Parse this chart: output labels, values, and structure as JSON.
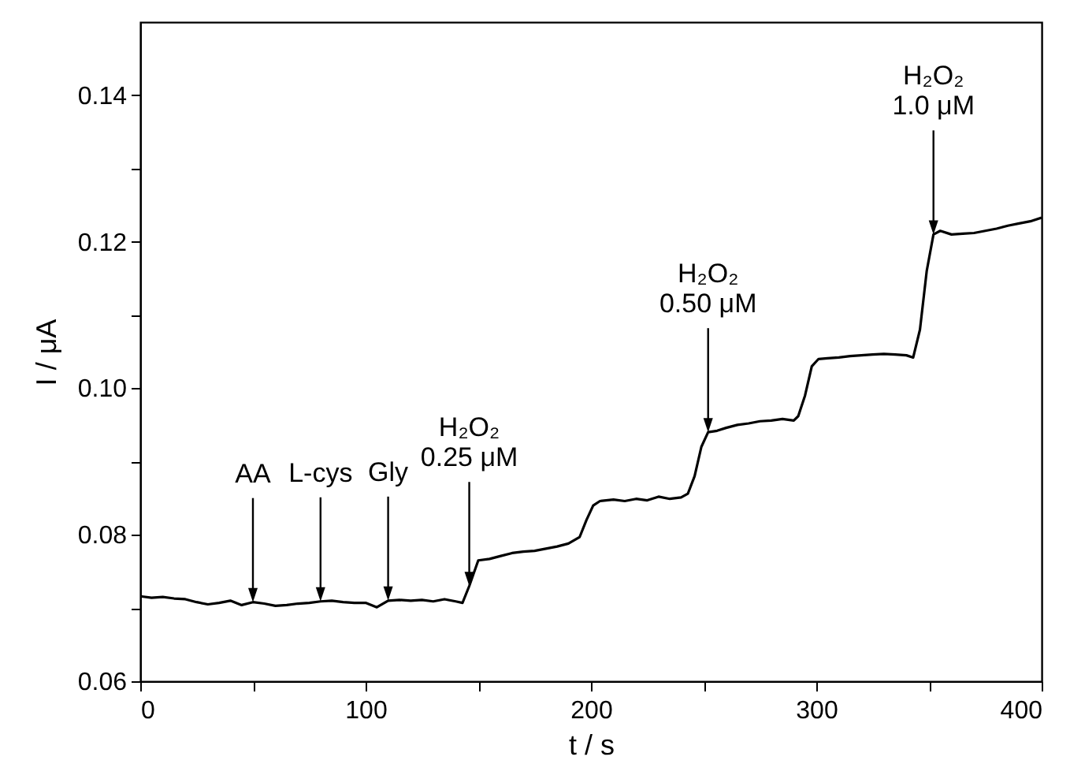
{
  "chart_data": {
    "type": "line",
    "xlabel": "t / s",
    "ylabel": "I / μA",
    "xlim": [
      0,
      400
    ],
    "xticks": [
      0,
      {
        "value": 50,
        "label": null
      },
      100,
      {
        "value": 150,
        "label": null
      },
      200,
      {
        "value": 250,
        "label": null
      },
      300,
      {
        "value": 350,
        "label": null
      },
      400
    ],
    "ylim": [
      0.06,
      0.15
    ],
    "yticks": [
      0.06,
      {
        "value": 0.07,
        "label": null
      },
      0.08,
      {
        "value": 0.09,
        "label": null
      },
      {
        "value": 0.1,
        "label": "0.10"
      },
      {
        "value": 0.11,
        "label": null
      },
      0.12,
      {
        "value": 0.13,
        "label": null
      },
      0.14
    ],
    "grid": false,
    "marker": "none",
    "line_style": "solid",
    "x": [
      0,
      5,
      10,
      15,
      20,
      25,
      30,
      35,
      40,
      45,
      50,
      55,
      60,
      65,
      70,
      75,
      80,
      85,
      90,
      95,
      100,
      105,
      110,
      115,
      120,
      125,
      130,
      135,
      140,
      143,
      146,
      150,
      155,
      160,
      165,
      170,
      175,
      180,
      185,
      190,
      195,
      198,
      201,
      204,
      210,
      215,
      220,
      225,
      230,
      235,
      240,
      243,
      246,
      249,
      252,
      256,
      260,
      265,
      270,
      275,
      280,
      285,
      290,
      292,
      295,
      298,
      301,
      305,
      310,
      315,
      320,
      325,
      330,
      335,
      340,
      343,
      346,
      349,
      352,
      355,
      360,
      365,
      370,
      375,
      380,
      385,
      390,
      395,
      400
    ],
    "series": [
      {
        "color": "#000000",
        "values": [
          0.0716,
          0.0714,
          0.0715,
          0.0713,
          0.0712,
          0.0708,
          0.0705,
          0.0707,
          0.071,
          0.0704,
          0.0708,
          0.0706,
          0.0703,
          0.0704,
          0.0706,
          0.0707,
          0.0709,
          0.071,
          0.0708,
          0.0707,
          0.0707,
          0.0701,
          0.071,
          0.0711,
          0.071,
          0.0711,
          0.0709,
          0.0712,
          0.0709,
          0.0707,
          0.073,
          0.0765,
          0.0767,
          0.0771,
          0.0775,
          0.0777,
          0.0778,
          0.0781,
          0.0784,
          0.0788,
          0.0797,
          0.082,
          0.084,
          0.0846,
          0.0848,
          0.0846,
          0.0849,
          0.0847,
          0.0852,
          0.0849,
          0.0851,
          0.0856,
          0.088,
          0.092,
          0.094,
          0.0942,
          0.0946,
          0.095,
          0.0952,
          0.0955,
          0.0956,
          0.0958,
          0.0956,
          0.0962,
          0.099,
          0.103,
          0.104,
          0.1041,
          0.1042,
          0.1044,
          0.1045,
          0.1046,
          0.1047,
          0.1046,
          0.1045,
          0.1042,
          0.108,
          0.116,
          0.121,
          0.1215,
          0.121,
          0.1211,
          0.1212,
          0.1215,
          0.1218,
          0.1222,
          0.1225,
          0.1228,
          0.1233
        ]
      }
    ],
    "annotations": [
      {
        "text": "AA",
        "x": 50,
        "y": 0.0708
      },
      {
        "text": "L-cys",
        "x": 80,
        "y": 0.0709
      },
      {
        "text": "Gly",
        "x": 110,
        "y": 0.071
      },
      {
        "text": "H₂O₂\n0.25 μM",
        "x": 146,
        "y": 0.073
      },
      {
        "text": "H₂O₂\n0.50 μM",
        "x": 252,
        "y": 0.094
      },
      {
        "text": "H₂O₂\n1.0 μM",
        "x": 352,
        "y": 0.121
      }
    ]
  }
}
